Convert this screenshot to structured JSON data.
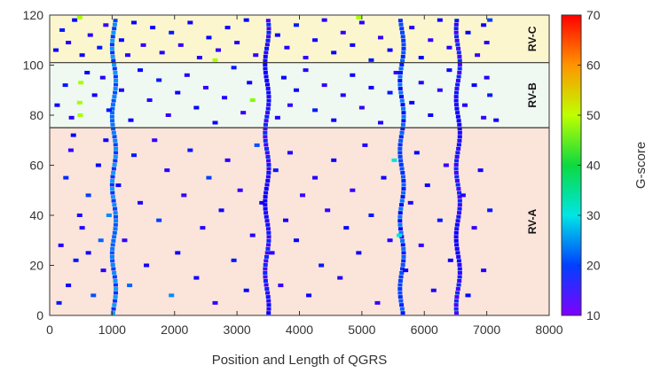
{
  "chart_data": {
    "type": "scatter",
    "title": "",
    "xlabel": "Position and Length of QGRS",
    "ylabel": "",
    "xlim": [
      0,
      8000
    ],
    "ylim": [
      0,
      120
    ],
    "xticks": [
      "0",
      "1000",
      "2000",
      "3000",
      "4000",
      "5000",
      "6000",
      "7000",
      "8000"
    ],
    "yticks": [
      "0",
      "20",
      "40",
      "60",
      "80",
      "100",
      "120"
    ],
    "grid": false,
    "colorbar": {
      "label": "G-score",
      "range": [
        10,
        70
      ],
      "ticks": [
        "10",
        "20",
        "30",
        "40",
        "50",
        "60",
        "70"
      ]
    },
    "bands": [
      {
        "name": "RV-A",
        "y_range": [
          0,
          75
        ],
        "color": "#fbe4da"
      },
      {
        "name": "RV-B",
        "y_range": [
          75,
          101
        ],
        "color": "#f0f8f2"
      },
      {
        "name": "RV-C",
        "y_range": [
          101,
          120
        ],
        "color": "#fcf6cf"
      }
    ],
    "vertical_clusters": [
      {
        "x": 1030,
        "g_score": 22
      },
      {
        "x": 3480,
        "g_score": 16
      },
      {
        "x": 5640,
        "g_score": 20
      },
      {
        "x": 6540,
        "g_score": 16
      }
    ],
    "points": [
      [
        150,
        5,
        18
      ],
      [
        300,
        12,
        16
      ],
      [
        420,
        22,
        18
      ],
      [
        520,
        35,
        15
      ],
      [
        620,
        48,
        20
      ],
      [
        780,
        60,
        17
      ],
      [
        900,
        70,
        16
      ],
      [
        180,
        28,
        15
      ],
      [
        260,
        55,
        19
      ],
      [
        340,
        66,
        14
      ],
      [
        700,
        8,
        21
      ],
      [
        860,
        18,
        15
      ],
      [
        950,
        40,
        24
      ],
      [
        1100,
        52,
        16
      ],
      [
        1200,
        30,
        14
      ],
      [
        1280,
        12,
        22
      ],
      [
        1350,
        64,
        18
      ],
      [
        1450,
        45,
        15
      ],
      [
        1550,
        20,
        16
      ],
      [
        1680,
        70,
        14
      ],
      [
        1750,
        38,
        20
      ],
      [
        1880,
        58,
        15
      ],
      [
        1950,
        8,
        24
      ],
      [
        2050,
        25,
        16
      ],
      [
        2150,
        48,
        14
      ],
      [
        2250,
        66,
        18
      ],
      [
        2350,
        15,
        16
      ],
      [
        2450,
        35,
        15
      ],
      [
        2550,
        55,
        20
      ],
      [
        2650,
        5,
        14
      ],
      [
        2750,
        42,
        16
      ],
      [
        2850,
        62,
        15
      ],
      [
        2950,
        22,
        18
      ],
      [
        3050,
        50,
        14
      ],
      [
        3150,
        10,
        17
      ],
      [
        3250,
        32,
        15
      ],
      [
        3320,
        68,
        21
      ],
      [
        3400,
        45,
        16
      ],
      [
        3560,
        25,
        15
      ],
      [
        3620,
        58,
        18
      ],
      [
        3700,
        12,
        14
      ],
      [
        3780,
        38,
        16
      ],
      [
        3850,
        65,
        15
      ],
      [
        3950,
        30,
        17
      ],
      [
        4050,
        48,
        14
      ],
      [
        4150,
        8,
        16
      ],
      [
        4250,
        55,
        15
      ],
      [
        4350,
        20,
        18
      ],
      [
        4450,
        42,
        14
      ],
      [
        4550,
        62,
        16
      ],
      [
        4650,
        15,
        15
      ],
      [
        4750,
        35,
        17
      ],
      [
        4850,
        50,
        14
      ],
      [
        4950,
        25,
        16
      ],
      [
        5050,
        68,
        15
      ],
      [
        5150,
        40,
        18
      ],
      [
        5250,
        5,
        14
      ],
      [
        5350,
        55,
        16
      ],
      [
        5450,
        30,
        15
      ],
      [
        5520,
        62,
        31
      ],
      [
        5600,
        32,
        31
      ],
      [
        5700,
        18,
        16
      ],
      [
        5780,
        45,
        15
      ],
      [
        5880,
        65,
        17
      ],
      [
        5950,
        28,
        14
      ],
      [
        6050,
        52,
        16
      ],
      [
        6150,
        10,
        15
      ],
      [
        6250,
        38,
        18
      ],
      [
        6350,
        60,
        14
      ],
      [
        6420,
        22,
        16
      ],
      [
        6620,
        48,
        15
      ],
      [
        6700,
        8,
        17
      ],
      [
        6800,
        35,
        14
      ],
      [
        6900,
        58,
        16
      ],
      [
        6950,
        18,
        15
      ],
      [
        7050,
        42,
        18
      ],
      [
        480,
        40,
        15
      ],
      [
        620,
        25,
        16
      ],
      [
        820,
        30,
        22
      ],
      [
        380,
        72,
        17
      ],
      [
        120,
        84,
        16
      ],
      [
        250,
        92,
        18
      ],
      [
        350,
        79,
        15
      ],
      [
        480,
        85,
        52
      ],
      [
        490,
        80,
        52
      ],
      [
        500,
        93,
        52
      ],
      [
        600,
        97,
        17
      ],
      [
        720,
        88,
        16
      ],
      [
        850,
        95,
        15
      ],
      [
        950,
        82,
        18
      ],
      [
        1150,
        90,
        15
      ],
      [
        1300,
        78,
        16
      ],
      [
        1450,
        98,
        17
      ],
      [
        1600,
        86,
        15
      ],
      [
        1750,
        94,
        18
      ],
      [
        1900,
        80,
        14
      ],
      [
        2050,
        89,
        16
      ],
      [
        2200,
        96,
        15
      ],
      [
        2350,
        83,
        17
      ],
      [
        2500,
        91,
        14
      ],
      [
        2650,
        77,
        16
      ],
      [
        2800,
        87,
        15
      ],
      [
        2950,
        99,
        18
      ],
      [
        3100,
        81,
        14
      ],
      [
        3200,
        93,
        16
      ],
      [
        3250,
        86,
        50
      ],
      [
        3650,
        79,
        15
      ],
      [
        3750,
        95,
        17
      ],
      [
        3850,
        84,
        14
      ],
      [
        3950,
        90,
        16
      ],
      [
        4100,
        98,
        15
      ],
      [
        4250,
        82,
        18
      ],
      [
        4400,
        92,
        14
      ],
      [
        4550,
        78,
        16
      ],
      [
        4700,
        88,
        15
      ],
      [
        4850,
        96,
        17
      ],
      [
        5000,
        83,
        14
      ],
      [
        5150,
        91,
        16
      ],
      [
        5300,
        77,
        15
      ],
      [
        5450,
        89,
        18
      ],
      [
        5550,
        97,
        14
      ],
      [
        5800,
        85,
        16
      ],
      [
        5950,
        93,
        15
      ],
      [
        6100,
        80,
        17
      ],
      [
        6250,
        90,
        14
      ],
      [
        6400,
        98,
        16
      ],
      [
        6650,
        84,
        15
      ],
      [
        6800,
        92,
        17
      ],
      [
        6950,
        79,
        14
      ],
      [
        7050,
        88,
        18
      ],
      [
        7150,
        78,
        16
      ],
      [
        7000,
        95,
        15
      ],
      [
        100,
        106,
        16
      ],
      [
        200,
        114,
        18
      ],
      [
        300,
        109,
        15
      ],
      [
        400,
        118,
        17
      ],
      [
        480,
        119,
        52
      ],
      [
        520,
        104,
        16
      ],
      [
        650,
        112,
        15
      ],
      [
        800,
        107,
        18
      ],
      [
        900,
        116,
        14
      ],
      [
        1150,
        110,
        16
      ],
      [
        1250,
        104,
        15
      ],
      [
        1350,
        117,
        17
      ],
      [
        1500,
        108,
        14
      ],
      [
        1650,
        115,
        16
      ],
      [
        1800,
        105,
        15
      ],
      [
        1950,
        113,
        18
      ],
      [
        2100,
        108,
        14
      ],
      [
        2250,
        117,
        16
      ],
      [
        2400,
        103,
        15
      ],
      [
        2550,
        111,
        17
      ],
      [
        2650,
        102,
        52
      ],
      [
        2700,
        106,
        14
      ],
      [
        2850,
        115,
        16
      ],
      [
        3000,
        109,
        15
      ],
      [
        3150,
        118,
        17
      ],
      [
        3300,
        104,
        14
      ],
      [
        3650,
        112,
        16
      ],
      [
        3800,
        107,
        15
      ],
      [
        3950,
        116,
        18
      ],
      [
        4100,
        103,
        14
      ],
      [
        4250,
        110,
        16
      ],
      [
        4400,
        118,
        15
      ],
      [
        4550,
        105,
        17
      ],
      [
        4700,
        113,
        14
      ],
      [
        4850,
        108,
        16
      ],
      [
        4950,
        119,
        52
      ],
      [
        5000,
        117,
        15
      ],
      [
        5150,
        102,
        18
      ],
      [
        5300,
        111,
        14
      ],
      [
        5450,
        106,
        16
      ],
      [
        5800,
        115,
        15
      ],
      [
        5950,
        103,
        17
      ],
      [
        6100,
        110,
        14
      ],
      [
        6250,
        118,
        16
      ],
      [
        6400,
        107,
        15
      ],
      [
        6700,
        113,
        17
      ],
      [
        6850,
        104,
        14
      ],
      [
        6950,
        116,
        16
      ],
      [
        7000,
        109,
        15
      ],
      [
        7050,
        118,
        20
      ]
    ]
  }
}
